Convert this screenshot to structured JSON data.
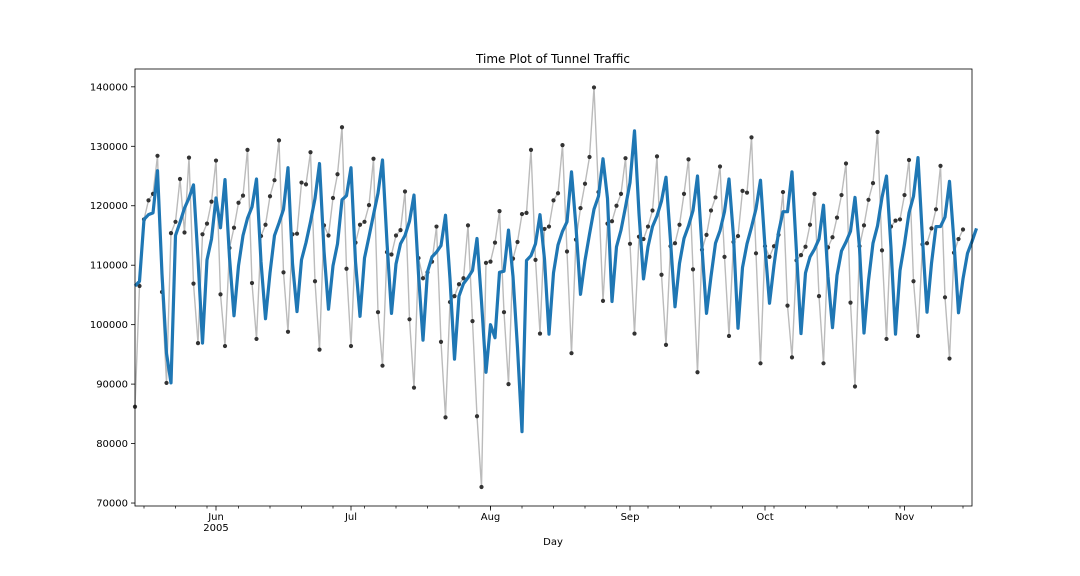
{
  "chart_data": {
    "type": "line",
    "title": "Time Plot of Tunnel Traffic",
    "xlabel": "Day",
    "ylabel": "",
    "xlim": [
      "2005-05-14",
      "2005-11-16"
    ],
    "ylim": [
      69500,
      143000
    ],
    "y_ticks": [
      70000,
      80000,
      90000,
      100000,
      110000,
      120000,
      130000,
      140000
    ],
    "x_ticks": [
      {
        "date": "2005-06-01",
        "label": "Jun",
        "sublabel": "2005"
      },
      {
        "date": "2005-07-01",
        "label": "Jul",
        "sublabel": ""
      },
      {
        "date": "2005-08-01",
        "label": "Aug",
        "sublabel": ""
      },
      {
        "date": "2005-09-01",
        "label": "Sep",
        "sublabel": ""
      },
      {
        "date": "2005-10-01",
        "label": "Oct",
        "sublabel": ""
      },
      {
        "date": "2005-11-01",
        "label": "Nov",
        "sublabel": ""
      }
    ],
    "grid": false,
    "legend": "none",
    "start_date": "2005-05-14",
    "colors": {
      "raw_line": "#bbbbbb",
      "raw_points": "#333333",
      "smooth_line": "#1f77b4"
    },
    "series": [
      {
        "values": [
          86200,
          106500,
          117700,
          120900,
          122000,
          128400,
          105500,
          90200,
          115400,
          117300,
          124500,
          115500,
          128100,
          106900,
          96900,
          115200,
          117000,
          120700,
          127600,
          105100,
          96400,
          112900,
          116300,
          120500,
          121700,
          129400,
          107000,
          97600,
          114900,
          116800,
          121600,
          124300,
          131000,
          108800,
          98800,
          115200,
          115300,
          123900,
          123600,
          129000,
          107300,
          95800,
          116700,
          115000,
          121300,
          125300,
          133200,
          109400,
          96400,
          113800,
          116800,
          117300,
          120100,
          127900,
          102100,
          93100,
          112200,
          111800,
          115000,
          115900,
          122400,
          100900,
          89400,
          111200,
          107800,
          108800,
          110600,
          116500,
          97100,
          84400,
          103800,
          104800,
          106800,
          107800,
          116700,
          100600,
          84600,
          72700,
          110400,
          110600,
          113800,
          119100,
          102100,
          90000,
          111100,
          113900,
          118600,
          118800,
          129400,
          110900,
          98500,
          116100,
          116500,
          120900,
          122100,
          130200,
          112300,
          95200,
          114300,
          119600,
          123700,
          128200,
          139900,
          122300,
          104000,
          117000,
          117400,
          120000,
          122000,
          128000,
          113600,
          98500,
          114800,
          114400,
          116500,
          119200,
          128300,
          108400,
          96600,
          113200,
          113700,
          116800,
          122000,
          127800,
          109300,
          92000,
          112600,
          115100,
          119200,
          121400,
          126600,
          111400,
          98100,
          113900,
          114900,
          122500,
          122200,
          131500,
          112000,
          93500,
          113200,
          111400,
          113200,
          115100,
          122300,
          103200,
          94500,
          110800,
          111700,
          113100,
          116800,
          122000,
          104800,
          93500,
          113000,
          114700,
          118000,
          121800,
          127100,
          103700,
          89600,
          113200,
          116700,
          121000,
          123800,
          132400,
          112500,
          97600,
          116500,
          117500,
          117700,
          121800,
          127700,
          107300,
          98100,
          113500,
          113700,
          116200,
          119400,
          126700,
          104600,
          94300,
          112100,
          114400,
          116000
        ]
      },
      {
        "values": [
          106500,
          107300,
          117700,
          118500,
          118800,
          125900,
          108500,
          95200,
          90200,
          115000,
          117200,
          119600,
          121300,
          123500,
          111100,
          96900,
          110900,
          114400,
          121300,
          116300,
          124400,
          111300,
          101500,
          109900,
          115000,
          117900,
          119800,
          124500,
          110600,
          101000,
          108700,
          115000,
          117100,
          119400,
          126400,
          110300,
          102200,
          110900,
          113800,
          117300,
          121200,
          127100,
          112400,
          102600,
          109900,
          113600,
          121000,
          121700,
          126400,
          110600,
          101400,
          111200,
          114800,
          118500,
          122100,
          127700,
          113800,
          101900,
          110200,
          113600,
          115000,
          117400,
          121800,
          108500,
          97400,
          108900,
          111400,
          112200,
          113300,
          118400,
          107700,
          94200,
          104800,
          106900,
          107900,
          109100,
          114500,
          103900,
          92000,
          100000,
          97800,
          108800,
          109000,
          115900,
          108100,
          96100,
          82000,
          110800,
          111600,
          113600,
          118500,
          111000,
          98400,
          108700,
          113400,
          115700,
          117300,
          125700,
          116400,
          105100,
          110800,
          115200,
          119400,
          121600,
          127900,
          121200,
          103900,
          113100,
          115900,
          119800,
          123900,
          132600,
          118700,
          107700,
          113100,
          116500,
          118300,
          120800,
          124800,
          114100,
          103000,
          110300,
          114500,
          116600,
          119200,
          125000,
          112900,
          101900,
          108100,
          113700,
          115800,
          119000,
          124500,
          114800,
          99400,
          109600,
          113600,
          116400,
          119500,
          124300,
          113100,
          103600,
          110000,
          115500,
          119000,
          119000,
          125700,
          112200,
          98500,
          108700,
          111400,
          112700,
          114400,
          120100,
          108100,
          99500,
          108300,
          112400,
          113900,
          115700,
          121400,
          112900,
          98600,
          107400,
          113700,
          116600,
          121400,
          125000,
          112900,
          98400,
          109100,
          113600,
          118800,
          121600,
          128100,
          114400,
          102100,
          110300,
          116500,
          116500,
          118100,
          124100,
          113900,
          102000,
          107700,
          112000,
          114000,
          116200
        ]
      }
    ]
  }
}
